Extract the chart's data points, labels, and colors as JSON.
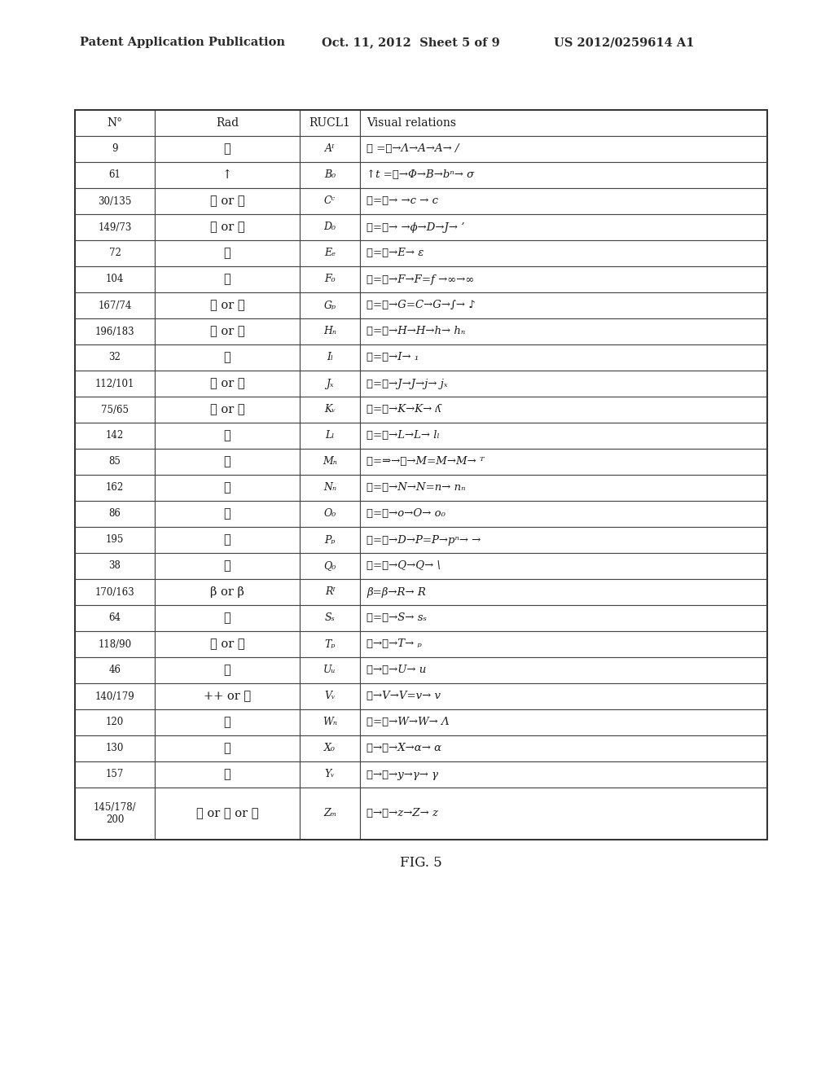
{
  "header_text_left": "Patent Application Publication",
  "header_text_mid": "Oct. 11, 2012  Sheet 5 of 9",
  "header_text_right": "US 2012/0259614 A1",
  "fig_label": "FIG. 5",
  "col_headers": [
    "N°",
    "Rad",
    "RUCL1",
    "Visual relations"
  ],
  "rows": [
    [
      "9",
      "イ",
      "Aᴵ",
      "イ =人→Λ→A→A→ /"
    ],
    [
      "61",
      "↑",
      "B₀",
      "↑t =心→Φ→B→bⁿ→ σ"
    ],
    [
      "30/135",
      "口 or 舌",
      "Cᶜ",
      "口=囗→ →c → c"
    ],
    [
      "149/73",
      "言 or 曰",
      "D₀",
      "言=言→ →ϕ→D→J→ ’"
    ],
    [
      "72",
      "日",
      "Eₑ",
      "日=日→E→ ε"
    ],
    [
      "104",
      "病",
      "F₀",
      "病=病→F→F=f →∞→∞"
    ],
    [
      "167/74",
      "金 or 月",
      "Gₚ",
      "金=金→G=C→G→∫→ ♪"
    ],
    [
      "196/183",
      "鳥 or 飛",
      "Hₙ",
      "鳥=鸟→H→H→h→ hₙ"
    ],
    [
      "32",
      "土",
      "Iₗ",
      "土=土→I→ ₁"
    ],
    [
      "112/101",
      "石 or 用",
      "Jₓ",
      "石=石→J→J→j→ jₓ"
    ],
    [
      "75/65",
      "木 or 支",
      "Kᵥ",
      "木=木→K→K→ ʎ"
    ],
    [
      "142",
      "虫",
      "Lₗ",
      "虫=虫→L→L→ lₗ"
    ],
    [
      "85",
      "氵",
      "Mₙ",
      "永=⇒→水→M=M→M→ ᵀ"
    ],
    [
      "162",
      "辶",
      "Nₙ",
      "辶=乃→N→N=n→ nₙ"
    ],
    [
      "86",
      "灬",
      "O₀",
      "灬=火→o→O→ o₀"
    ],
    [
      "195",
      "魚",
      "Pₚ",
      "魚=魚→D→Ρ=P→pⁿ→ →"
    ],
    [
      "38",
      "女",
      "Q₀",
      "女=女→Q→Q→ \\"
    ],
    [
      "170/163",
      "β or β",
      "Rᴵ",
      "β=β→R→ R"
    ],
    [
      "64",
      "手",
      "Sₛ",
      "手=手→S→ sₛ"
    ],
    [
      "118/90",
      "竹 or 片",
      "Tₚ",
      "竹→竹→T→ ₚ"
    ],
    [
      "46",
      "山",
      "Uᵤ",
      "山→山→U→ u"
    ],
    [
      "140/179",
      "++ or 非",
      "Vᵥ",
      "草→V→V=v→ v"
    ],
    [
      "120",
      "糸",
      "Wₙ",
      "糸=糸→W→W→ Λ"
    ],
    [
      "130",
      "肌",
      "X₀",
      "肌→肌→X→α→ α"
    ],
    [
      "157",
      "足",
      "Yᵥ",
      "足→足→y→γ→ γ"
    ],
    [
      "145/178/\n200",
      "衣 or 青 or 麻",
      "Zₘ",
      "衣→衣→z→Z→ z"
    ]
  ]
}
